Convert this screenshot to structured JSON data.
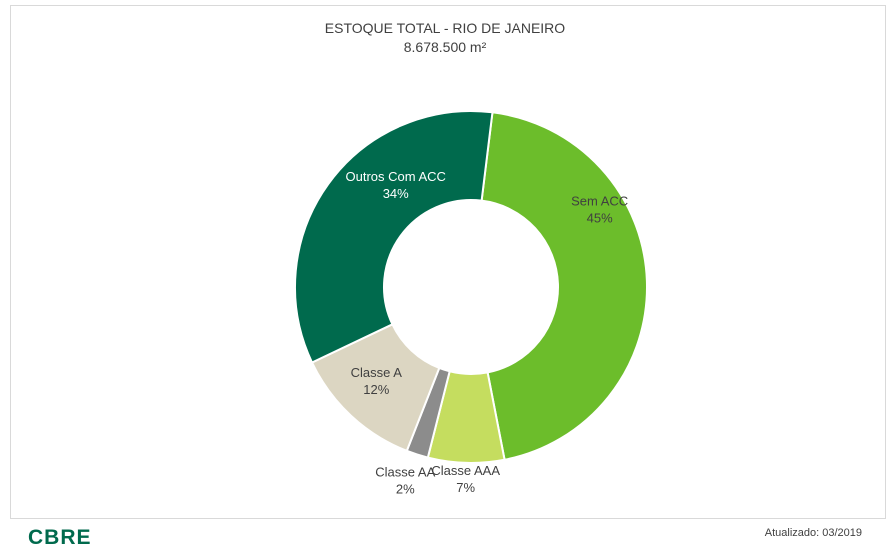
{
  "chart_data": {
    "type": "pie",
    "title": "ESTOQUE TOTAL - RIO DE JANEIRO",
    "subtitle": "8.678.500 m²",
    "donut": true,
    "slices": [
      {
        "label": "Sem ACC",
        "value": 45,
        "value_label": "45%",
        "color": "#6cbd2b",
        "label_color": "#404040"
      },
      {
        "label": "Classe AAA",
        "value": 7,
        "value_label": "7%",
        "color": "#c5dd5f",
        "label_color": "#404040"
      },
      {
        "label": "Classe AA",
        "value": 2,
        "value_label": "2%",
        "color": "#8c8c8c",
        "label_color": "#404040"
      },
      {
        "label": "Classe A",
        "value": 12,
        "value_label": "12%",
        "color": "#dcd6c2",
        "label_color": "#404040"
      },
      {
        "label": "Outros Com ACC",
        "value": 34,
        "value_label": "34%",
        "color": "#006a4d",
        "label_color": "#ffffff"
      }
    ]
  },
  "footer": {
    "logo_text": "CBRE",
    "updated": "Atualizado: 03/2019"
  }
}
